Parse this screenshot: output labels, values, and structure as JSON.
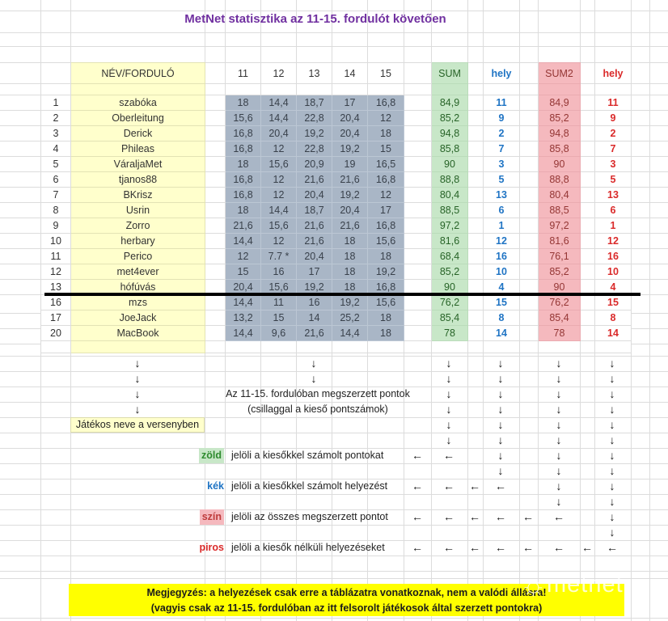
{
  "title": "MetNet statisztika az 11-15. fordulót követően",
  "table": {
    "corner": "NÉV/FORDULÓ",
    "round_headers": [
      "11",
      "12",
      "13",
      "14",
      "15"
    ],
    "sum_header": "SUM",
    "hely_header": "hely",
    "sum2_header": "SUM2",
    "hely2_header": "hely",
    "rows": [
      {
        "num": "1",
        "name": "szabóka",
        "r": [
          "18",
          "14,4",
          "18,7",
          "17",
          "16,8"
        ],
        "sum": "84,9",
        "hely": "11",
        "sum2": "84,9",
        "hely2": "11"
      },
      {
        "num": "2",
        "name": "Oberleitung",
        "r": [
          "15,6",
          "14,4",
          "22,8",
          "20,4",
          "12"
        ],
        "sum": "85,2",
        "hely": "9",
        "sum2": "85,2",
        "hely2": "9"
      },
      {
        "num": "3",
        "name": "Derick",
        "r": [
          "16,8",
          "20,4",
          "19,2",
          "20,4",
          "18"
        ],
        "sum": "94,8",
        "hely": "2",
        "sum2": "94,8",
        "hely2": "2"
      },
      {
        "num": "4",
        "name": "Phileas",
        "r": [
          "16,8",
          "12",
          "22,8",
          "19,2",
          "15"
        ],
        "sum": "85,8",
        "hely": "7",
        "sum2": "85,8",
        "hely2": "7"
      },
      {
        "num": "5",
        "name": "VáraljaMet",
        "r": [
          "18",
          "15,6",
          "20,9",
          "19",
          "16,5"
        ],
        "sum": "90",
        "hely": "3",
        "sum2": "90",
        "hely2": "3"
      },
      {
        "num": "6",
        "name": "tjanos88",
        "r": [
          "16,8",
          "12",
          "21,6",
          "21,6",
          "16,8"
        ],
        "sum": "88,8",
        "hely": "5",
        "sum2": "88,8",
        "hely2": "5"
      },
      {
        "num": "7",
        "name": "BKrisz",
        "r": [
          "16,8",
          "12",
          "20,4",
          "19,2",
          "12"
        ],
        "sum": "80,4",
        "hely": "13",
        "sum2": "80,4",
        "hely2": "13"
      },
      {
        "num": "8",
        "name": "Usrin",
        "r": [
          "18",
          "14,4",
          "18,7",
          "20,4",
          "17"
        ],
        "sum": "88,5",
        "hely": "6",
        "sum2": "88,5",
        "hely2": "6"
      },
      {
        "num": "9",
        "name": "Zorro",
        "r": [
          "21,6",
          "15,6",
          "21,6",
          "21,6",
          "16,8"
        ],
        "sum": "97,2",
        "hely": "1",
        "sum2": "97,2",
        "hely2": "1"
      },
      {
        "num": "10",
        "name": "herbary",
        "r": [
          "14,4",
          "12",
          "21,6",
          "18",
          "15,6"
        ],
        "sum": "81,6",
        "hely": "12",
        "sum2": "81,6",
        "hely2": "12"
      },
      {
        "num": "11",
        "name": "Perico",
        "r": [
          "12",
          "7.7 *",
          "20,4",
          "18",
          "18"
        ],
        "sum": "68,4",
        "hely": "16",
        "sum2": "76,1",
        "hely2": "16"
      },
      {
        "num": "12",
        "name": "met4ever",
        "r": [
          "15",
          "16",
          "17",
          "18",
          "19,2"
        ],
        "sum": "85,2",
        "hely": "10",
        "sum2": "85,2",
        "hely2": "10"
      },
      {
        "num": "13",
        "name": "hófúvás",
        "r": [
          "20,4",
          "15,6",
          "19,2",
          "18",
          "16,8"
        ],
        "sum": "90",
        "hely": "4",
        "sum2": "90",
        "hely2": "4"
      },
      {
        "num": "16",
        "name": "mzs",
        "r": [
          "14,4",
          "11",
          "16",
          "19,2",
          "15,6"
        ],
        "sum": "76,2",
        "hely": "15",
        "sum2": "76,2",
        "hely2": "15"
      },
      {
        "num": "17",
        "name": "JoeJack",
        "r": [
          "13,2",
          "15",
          "14",
          "25,2",
          "18"
        ],
        "sum": "85,4",
        "hely": "8",
        "sum2": "85,4",
        "hely2": "8"
      },
      {
        "num": "20",
        "name": "MacBook",
        "r": [
          "14,4",
          "9,6",
          "21,6",
          "14,4",
          "18"
        ],
        "sum": "78",
        "hely": "14",
        "sum2": "78",
        "hely2": "14"
      }
    ]
  },
  "annotations": {
    "points_line1": "Az 11-15. fordulóban megszerzett pontok",
    "points_line2": "(csillaggal a kieső pontszámok)",
    "player_name_label": "Játékos neve a versenyben"
  },
  "legend": [
    {
      "label": "zöld",
      "style": "green",
      "text": "jelöli a kiesőkkel számolt pontokat"
    },
    {
      "label": "kék",
      "style": "blue",
      "text": "jelöli a kiesőkkel számolt helyezést"
    },
    {
      "label": "szín",
      "style": "pink",
      "text": "jelöli az összes megszerzett pontot"
    },
    {
      "label": "piros",
      "style": "red",
      "text": "jelöli a kiesők nélküli helyezéseket"
    }
  ],
  "arrows": {
    "down_glyph": "↓",
    "left_glyph": "←",
    "rows": [
      {
        "down": [
          "name",
          "r13",
          "sum",
          "hely",
          "sum2",
          "hely2"
        ]
      },
      {
        "down": [
          "name",
          "r13",
          "sum",
          "hely",
          "sum2",
          "hely2"
        ]
      },
      {
        "down": [
          "name",
          "sum",
          "hely",
          "sum2",
          "hely2"
        ]
      },
      {
        "down": [
          "name",
          "sum",
          "hely",
          "sum2",
          "hely2"
        ]
      },
      {
        "down": [
          "sum",
          "hely",
          "sum2",
          "hely2"
        ]
      },
      {
        "down": [
          "sum",
          "hely",
          "sum2",
          "hely2"
        ]
      },
      {
        "left": [
          "gapG",
          "sum"
        ],
        "down": [
          "hely",
          "sum2",
          "hely2"
        ]
      },
      {
        "down": [
          "hely",
          "sum2",
          "hely2"
        ]
      },
      {
        "left": [
          "gapG",
          "sum",
          "gapI",
          "hely"
        ],
        "down": [
          "sum2",
          "hely2"
        ]
      },
      {
        "down": [
          "sum2",
          "hely2"
        ]
      },
      {
        "left": [
          "gapG",
          "sum",
          "gapI",
          "hely",
          "gapK",
          "sum2"
        ],
        "down": [
          "hely2"
        ]
      },
      {
        "down": [
          "hely2"
        ]
      },
      {
        "left": [
          "gapG",
          "sum",
          "gapI",
          "hely",
          "gapK",
          "sum2",
          "gapM",
          "hely2"
        ]
      }
    ]
  },
  "note": {
    "line1": "Megjegyzés: a helyezések csak erre a táblázatra vonatkoznak, nem a valódi állásra!",
    "line2": "(vagyis csak az 11-15. fordulóban az itt felsorolt játékosok által szerzett pontokra)"
  },
  "watermark": {
    "icon": "sun-icon",
    "text": "metnet"
  },
  "colors": {
    "title": "#7030A0",
    "name_column": "#FFFFCC",
    "rounds_block": "#A9B6C6",
    "sum_bg": "#C8E7C8",
    "sum_text": "#276327",
    "sum2_bg": "#F5B9BE",
    "sum2_text": "#943634",
    "hely_text": "#1F74C4",
    "hely2_text": "#DA2A2A",
    "note_bg": "#FFFF00",
    "gridline": "#DCDCDC"
  }
}
